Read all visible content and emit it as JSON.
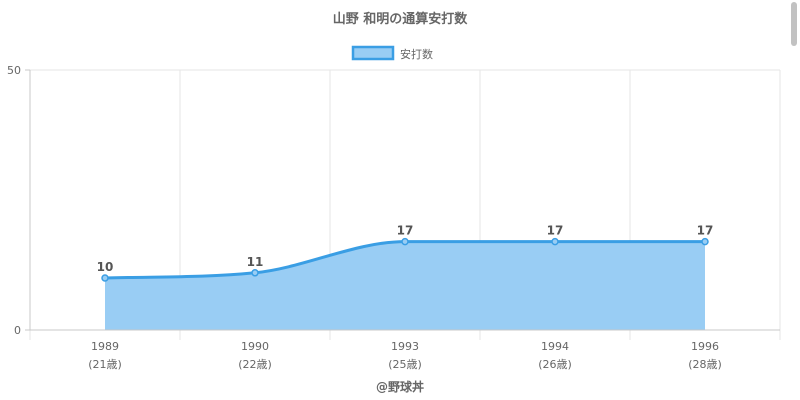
{
  "chart_data": {
    "type": "area",
    "title": "山野 和明の通算安打数",
    "categories": [
      {
        "year": "1989",
        "age": "(21歳)"
      },
      {
        "year": "1990",
        "age": "(22歳)"
      },
      {
        "year": "1993",
        "age": "(25歳)"
      },
      {
        "year": "1994",
        "age": "(26歳)"
      },
      {
        "year": "1996",
        "age": "(28歳)"
      }
    ],
    "series": [
      {
        "name": "安打数",
        "values": [
          10,
          11,
          17,
          17,
          17
        ]
      }
    ],
    "ylim": [
      0,
      50
    ],
    "y_ticks": [
      "0",
      "50"
    ],
    "xlabel": "@野球丼",
    "ylabel": "",
    "legend_position": "top",
    "grid": true,
    "colors": {
      "line": "#3a9ee4",
      "fill": "#99cdf4",
      "grid": "#e6e6e6",
      "axis": "#c8c8c8",
      "text": "#666666",
      "label": "#555555"
    }
  }
}
